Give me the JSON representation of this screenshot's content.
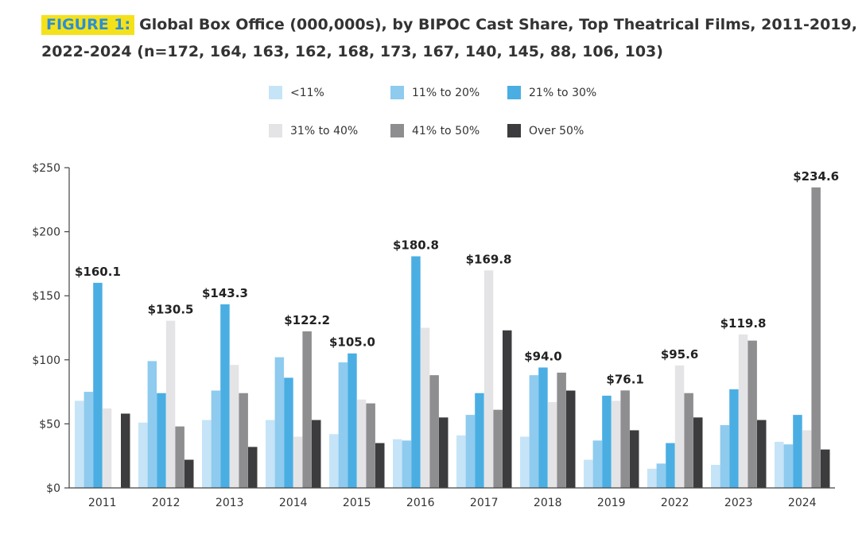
{
  "title": {
    "label": "FIGURE 1:",
    "line1": "Global Box Office (000,000s), by BIPOC Cast Share, Top Theatrical Films, 2011-2019,",
    "line2": "2022-2024 (n=172, 164, 163, 162, 168, 173, 167, 140, 145, 88, 106, 103)"
  },
  "chart_data": {
    "type": "bar",
    "title": "Global Box Office (000,000s), by BIPOC Cast Share, Top Theatrical Films, 2011-2019, 2022-2024 (n=172, 164, 163, 162, 168, 173, 167, 140, 145, 88, 106, 103)",
    "xlabel": "",
    "ylabel": "",
    "ylim": [
      0,
      250
    ],
    "yticks": [
      0,
      50,
      100,
      150,
      200,
      250
    ],
    "ytick_labels": [
      "$0",
      "$50",
      "$100",
      "$150",
      "$200",
      "$250"
    ],
    "grid": false,
    "legend_position": "top-center",
    "categories": [
      "2011",
      "2012",
      "2013",
      "2014",
      "2015",
      "2016",
      "2017",
      "2018",
      "2019",
      "2022",
      "2023",
      "2024"
    ],
    "series": [
      {
        "name": "<11%",
        "color": "#c6e4f7",
        "values": [
          68,
          51,
          53,
          53,
          42,
          38,
          41,
          40,
          22,
          15,
          18,
          36
        ]
      },
      {
        "name": "11% to 20%",
        "color": "#8ecbee",
        "values": [
          75,
          99,
          76,
          102,
          98,
          37,
          57,
          88,
          37,
          19,
          49,
          34
        ]
      },
      {
        "name": "21% to 30%",
        "color": "#4aaee3",
        "values": [
          160.1,
          74,
          143.3,
          86,
          105.0,
          180.8,
          74,
          94.0,
          72,
          35,
          77,
          57
        ]
      },
      {
        "name": "31% to 40%",
        "color": "#e4e4e6",
        "values": [
          62,
          130.5,
          96,
          40,
          69,
          125,
          169.8,
          67,
          68,
          95.6,
          119.8,
          45
        ]
      },
      {
        "name": "41% to 50%",
        "color": "#8e8e90",
        "values": [
          0,
          48,
          74,
          122.2,
          66,
          88,
          61,
          90,
          76.1,
          74,
          115,
          234.6
        ]
      },
      {
        "name": "Over 50%",
        "color": "#3c3c3e",
        "values": [
          58,
          22,
          32,
          53,
          35,
          55,
          123,
          76,
          45,
          55,
          53,
          30
        ]
      }
    ],
    "annotations": [
      {
        "category": "2011",
        "text": "$160.1"
      },
      {
        "category": "2012",
        "text": "$130.5"
      },
      {
        "category": "2013",
        "text": "$143.3"
      },
      {
        "category": "2014",
        "text": "$122.2"
      },
      {
        "category": "2015",
        "text": "$105.0"
      },
      {
        "category": "2016",
        "text": "$180.8"
      },
      {
        "category": "2017",
        "text": "$169.8"
      },
      {
        "category": "2018",
        "text": "$94.0"
      },
      {
        "category": "2019",
        "text": "$76.1"
      },
      {
        "category": "2022",
        "text": "$95.6"
      },
      {
        "category": "2023",
        "text": "$119.8"
      },
      {
        "category": "2024",
        "text": "$234.6"
      }
    ]
  }
}
